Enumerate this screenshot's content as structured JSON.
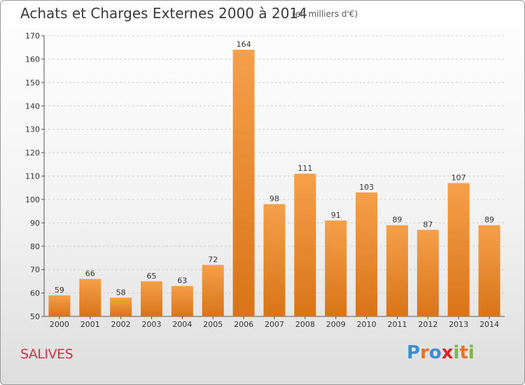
{
  "header": {
    "title": "Achats et Charges Externes 2000 à 2014",
    "subtitle": "(en milliers d'€)"
  },
  "footer": {
    "place": "SALIVES",
    "logo": {
      "letters": [
        "P",
        "r",
        "o",
        "x",
        "i",
        "t",
        "i"
      ],
      "colors": [
        "#3a8fd0",
        "#e4742a",
        "#3a8fd0",
        "#cc2a2a",
        "#7ab648",
        "#e4742a",
        "#7ab648"
      ]
    }
  },
  "chart_data": {
    "type": "bar",
    "categories": [
      "2000",
      "2001",
      "2002",
      "2003",
      "2004",
      "2005",
      "2006",
      "2007",
      "2008",
      "2009",
      "2010",
      "2011",
      "2012",
      "2013",
      "2014"
    ],
    "values": [
      59,
      66,
      58,
      65,
      63,
      72,
      164,
      98,
      111,
      91,
      103,
      89,
      87,
      107,
      89
    ],
    "ylim": [
      50,
      170
    ],
    "yticks": [
      50,
      60,
      70,
      80,
      90,
      100,
      110,
      120,
      130,
      140,
      150,
      160,
      170
    ],
    "grid": true,
    "bar_color": "#f5a04a",
    "bar_shadow": "#d97418"
  }
}
